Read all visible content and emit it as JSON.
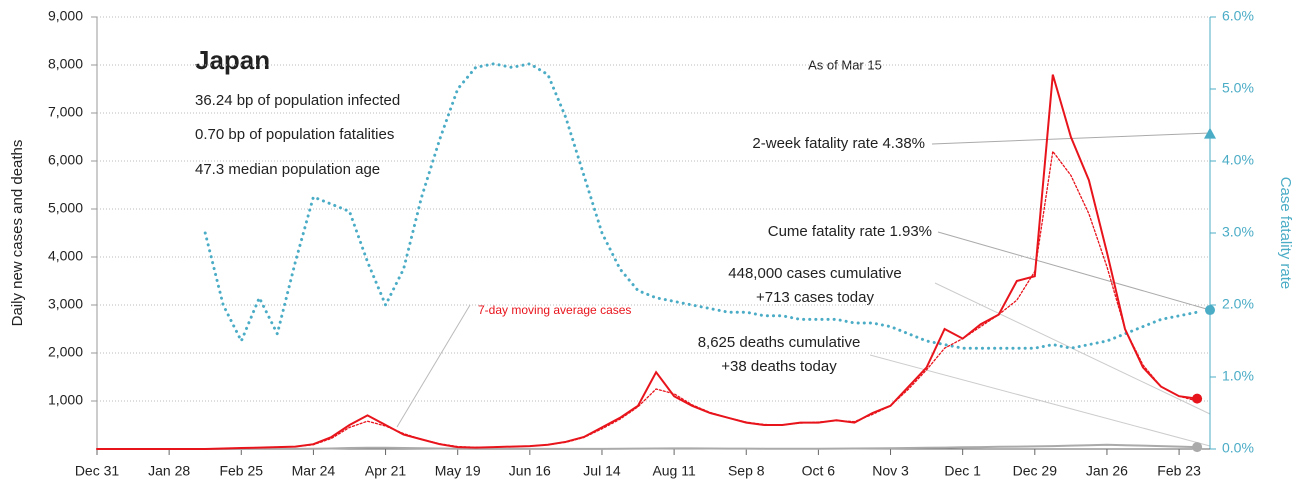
{
  "chart_data": {
    "type": "line",
    "title": "Japan",
    "subtitle": [
      "36.24 bp of population infected",
      "0.70 bp of population fatalities",
      "47.3 median population age"
    ],
    "note": "As of Mar 15",
    "y_label": "Daily new cases and deaths",
    "y2_label": "Case fatality rate",
    "avg_label": "7-day moving average cases",
    "cases_labels": [
      "448,000 cases cumulative",
      "+713 cases today"
    ],
    "deaths_labels": [
      "8,625 deaths cumulative",
      "+38 deaths today"
    ],
    "markers": [
      {
        "value": 4.38,
        "label": "2-week fatality rate 4.38%",
        "shape": "triangle"
      },
      {
        "value": 1.93,
        "label": "Cume fatality rate 1.93%",
        "shape": "circle"
      }
    ],
    "x": [
      0,
      7,
      14,
      21,
      28,
      35,
      42,
      49,
      56,
      63,
      70,
      77,
      84,
      91,
      98,
      105,
      112,
      119,
      126,
      133,
      140,
      147,
      154,
      161,
      168,
      175,
      182,
      189,
      196,
      203,
      210,
      217,
      224,
      231,
      238,
      245,
      252,
      259,
      266,
      273,
      280,
      287,
      294,
      301,
      308,
      315,
      322,
      329,
      336,
      343,
      350,
      357,
      364,
      371,
      378,
      385,
      392,
      399,
      406,
      413,
      420,
      427
    ],
    "xlim": [
      0,
      432
    ],
    "xticks": [
      {
        "value": 0,
        "label": "Dec 31"
      },
      {
        "value": 28,
        "label": "Jan 28"
      },
      {
        "value": 56,
        "label": "Feb 25"
      },
      {
        "value": 84,
        "label": "Mar 24"
      },
      {
        "value": 112,
        "label": "Apr 21"
      },
      {
        "value": 140,
        "label": "May 19"
      },
      {
        "value": 168,
        "label": "Jun 16"
      },
      {
        "value": 196,
        "label": "Jul 14"
      },
      {
        "value": 224,
        "label": "Aug 11"
      },
      {
        "value": 252,
        "label": "Sep 8"
      },
      {
        "value": 280,
        "label": "Oct 6"
      },
      {
        "value": 308,
        "label": "Nov 3"
      },
      {
        "value": 336,
        "label": "Dec 1"
      },
      {
        "value": 364,
        "label": "Dec 29"
      },
      {
        "value": 392,
        "label": "Jan 26"
      },
      {
        "value": 420,
        "label": "Feb 23"
      }
    ],
    "ylim": [
      0,
      9000
    ],
    "yticks": [
      {
        "value": 1000,
        "label": "1,000"
      },
      {
        "value": 2000,
        "label": "2,000"
      },
      {
        "value": 3000,
        "label": "3,000"
      },
      {
        "value": 4000,
        "label": "4,000"
      },
      {
        "value": 5000,
        "label": "5,000"
      },
      {
        "value": 6000,
        "label": "6,000"
      },
      {
        "value": 7000,
        "label": "7,000"
      },
      {
        "value": 8000,
        "label": "8,000"
      },
      {
        "value": 9000,
        "label": "9,000"
      }
    ],
    "y2lim": [
      0,
      6
    ],
    "y2ticks": [
      {
        "value": 0,
        "label": "0.0%"
      },
      {
        "value": 1,
        "label": "1.0%"
      },
      {
        "value": 2,
        "label": "2.0%"
      },
      {
        "value": 3,
        "label": "3.0%"
      },
      {
        "value": 4,
        "label": "4.0%"
      },
      {
        "value": 5,
        "label": "5.0%"
      },
      {
        "value": 6,
        "label": "6.0%"
      }
    ],
    "grid": true,
    "series": [
      {
        "name": "Daily cases",
        "color": "#e8141c",
        "style": "solid",
        "values": [
          0,
          0,
          0,
          0,
          0,
          0,
          0,
          10,
          20,
          30,
          40,
          50,
          100,
          250,
          500,
          700,
          500,
          300,
          200,
          100,
          40,
          30,
          40,
          50,
          60,
          90,
          150,
          250,
          450,
          650,
          900,
          1600,
          1100,
          900,
          750,
          650,
          550,
          500,
          500,
          550,
          550,
          600,
          550,
          750,
          900,
          1300,
          1700,
          2500,
          2300,
          2600,
          2800,
          3500,
          3600,
          7800,
          6500,
          5600,
          4100,
          2500,
          1700,
          1300,
          1100,
          1050
        ]
      },
      {
        "name": "7-day moving average cases",
        "color": "#e8141c",
        "style": "dotted",
        "values": [
          0,
          0,
          0,
          0,
          0,
          0,
          0,
          8,
          18,
          28,
          38,
          50,
          90,
          220,
          450,
          580,
          480,
          320,
          200,
          110,
          50,
          35,
          40,
          50,
          60,
          90,
          140,
          240,
          420,
          620,
          880,
          1250,
          1150,
          920,
          760,
          650,
          560,
          510,
          500,
          540,
          560,
          590,
          570,
          720,
          900,
          1250,
          1650,
          2100,
          2300,
          2550,
          2800,
          3100,
          3700,
          6200,
          5700,
          4900,
          3800,
          2500,
          1750,
          1300,
          1100,
          1000
        ]
      },
      {
        "name": "Daily deaths",
        "color": "#aaaaaa",
        "style": "solid",
        "values": [
          0,
          0,
          0,
          0,
          0,
          0,
          0,
          0,
          1,
          2,
          2,
          3,
          5,
          10,
          20,
          25,
          25,
          20,
          15,
          10,
          5,
          3,
          2,
          2,
          2,
          2,
          2,
          3,
          3,
          5,
          8,
          10,
          12,
          12,
          10,
          8,
          8,
          7,
          7,
          7,
          7,
          8,
          10,
          12,
          15,
          20,
          25,
          30,
          35,
          40,
          45,
          50,
          55,
          60,
          70,
          80,
          90,
          80,
          70,
          60,
          50,
          40
        ]
      },
      {
        "name": "Case fatality rate",
        "color": "#4bacc6",
        "style": "dotted",
        "axis": "y2",
        "values": [
          null,
          null,
          null,
          null,
          null,
          null,
          3.0,
          2.0,
          1.5,
          2.1,
          1.6,
          2.6,
          3.5,
          3.4,
          3.3,
          2.6,
          2.0,
          2.5,
          3.5,
          4.3,
          5.0,
          5.3,
          5.35,
          5.3,
          5.35,
          5.2,
          4.6,
          3.8,
          3.0,
          2.5,
          2.2,
          2.1,
          2.05,
          2.0,
          1.95,
          1.9,
          1.9,
          1.85,
          1.85,
          1.8,
          1.8,
          1.8,
          1.75,
          1.75,
          1.7,
          1.6,
          1.5,
          1.45,
          1.4,
          1.4,
          1.4,
          1.4,
          1.4,
          1.45,
          1.4,
          1.45,
          1.5,
          1.6,
          1.7,
          1.8,
          1.85,
          1.9
        ]
      }
    ]
  }
}
